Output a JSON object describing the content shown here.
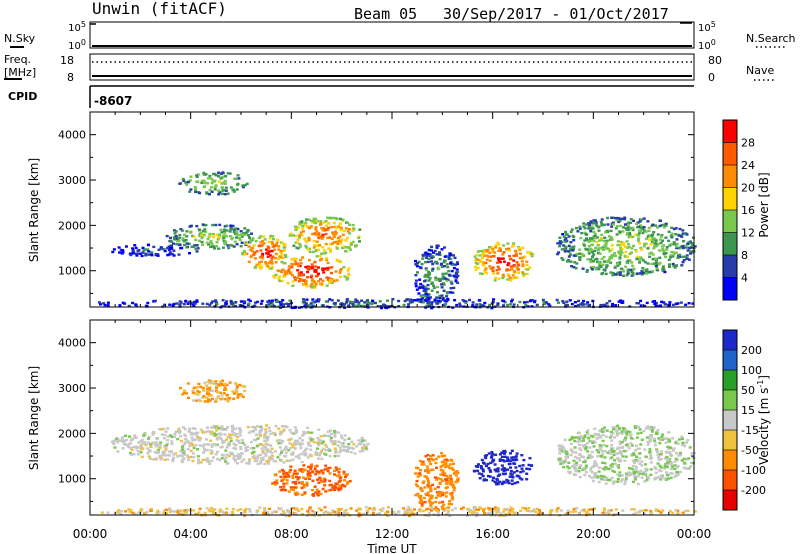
{
  "header": {
    "station": "Unwin (fitACF)",
    "beam": "Beam 05",
    "dates": "30/Sep/2017 - 01/Oct/2017"
  },
  "noise_panel": {
    "left_label": "N.Sky",
    "right_label": "N.Search",
    "left_ticks": [
      "10^5",
      "10^0"
    ],
    "right_ticks": [
      "10^5",
      "10^0"
    ]
  },
  "freq_panel": {
    "left_label_line1": "Freq.",
    "left_label_line2": "[MHz]",
    "left_ticks": [
      "18",
      "8"
    ],
    "right_label": "Nave",
    "right_ticks": [
      "80",
      "0"
    ]
  },
  "cpid": {
    "label": "CPID",
    "value": "-8607"
  },
  "chart_data": [
    {
      "type": "heatmap",
      "panel": "power",
      "ylabel": "Slant Range [km]",
      "ylim": [
        200,
        4500
      ],
      "yticks": [
        "4000",
        "3000",
        "2000",
        "1000"
      ],
      "xlim": [
        "00:00",
        "24:00"
      ],
      "colorbar": {
        "label": "Power [dB]",
        "ticks": [
          "28",
          "24",
          "20",
          "16",
          "12",
          "8",
          "4"
        ],
        "colors": [
          "#ff0000",
          "#ff5a00",
          "#ff8c00",
          "#ffd200",
          "#78c850",
          "#3c9650",
          "#283caa",
          "#0000ff"
        ]
      },
      "regions": [
        {
          "x": [
            0.8,
            4.2
          ],
          "y": [
            1350,
            1600
          ],
          "power": 6
        },
        {
          "x": [
            3.0,
            6.5
          ],
          "y": [
            1500,
            2050
          ],
          "power": 14
        },
        {
          "x": [
            6.0,
            7.8
          ],
          "y": [
            1050,
            1800
          ],
          "power": 26
        },
        {
          "x": [
            7.8,
            10.8
          ],
          "y": [
            1400,
            2200
          ],
          "power": 22
        },
        {
          "x": [
            7.2,
            10.3
          ],
          "y": [
            650,
            1350
          ],
          "power": 27
        },
        {
          "x": [
            3.5,
            6.2
          ],
          "y": [
            2700,
            3200
          ],
          "power": 14
        },
        {
          "x": [
            12.8,
            14.6
          ],
          "y": [
            300,
            1600
          ],
          "power": 10
        },
        {
          "x": [
            15.2,
            17.6
          ],
          "y": [
            800,
            1650
          ],
          "power": 26
        },
        {
          "x": [
            18.5,
            24.0
          ],
          "y": [
            900,
            2200
          ],
          "power": 14
        },
        {
          "x": [
            0.0,
            24.0
          ],
          "y": [
            200,
            400
          ],
          "power": 8
        }
      ]
    },
    {
      "type": "heatmap",
      "panel": "velocity",
      "ylabel": "Slant Range [km]",
      "ylim": [
        200,
        4500
      ],
      "yticks": [
        "4000",
        "3000",
        "2000",
        "1000"
      ],
      "xlim": [
        "00:00",
        "24:00"
      ],
      "colorbar": {
        "label": "Velocity [m s^-1]",
        "ticks": [
          "200",
          "100",
          "50",
          "15",
          "-15",
          "-50",
          "-100",
          "-200"
        ],
        "colors": [
          "#1e28c8",
          "#1e64c8",
          "#28a028",
          "#78c850",
          "#c8c8c8",
          "#f0c040",
          "#ff8c00",
          "#ff5000",
          "#e60000"
        ]
      },
      "regions": [
        {
          "x": [
            0.8,
            11.0
          ],
          "y": [
            1350,
            2200
          ],
          "velocity": 0
        },
        {
          "x": [
            7.2,
            10.3
          ],
          "y": [
            650,
            1350
          ],
          "velocity": -80
        },
        {
          "x": [
            3.5,
            6.2
          ],
          "y": [
            2700,
            3200
          ],
          "velocity": -30
        },
        {
          "x": [
            12.8,
            14.6
          ],
          "y": [
            300,
            1600
          ],
          "velocity": -60
        },
        {
          "x": [
            15.2,
            17.6
          ],
          "y": [
            900,
            1650
          ],
          "velocity": 180
        },
        {
          "x": [
            18.5,
            24.0
          ],
          "y": [
            900,
            2200
          ],
          "velocity": 10
        },
        {
          "x": [
            0.0,
            24.0
          ],
          "y": [
            200,
            400
          ],
          "velocity": -20
        }
      ]
    }
  ],
  "x_axis": {
    "ticks": [
      "00:00",
      "04:00",
      "08:00",
      "12:00",
      "16:00",
      "20:00",
      "00:00"
    ],
    "label": "Time UT"
  }
}
